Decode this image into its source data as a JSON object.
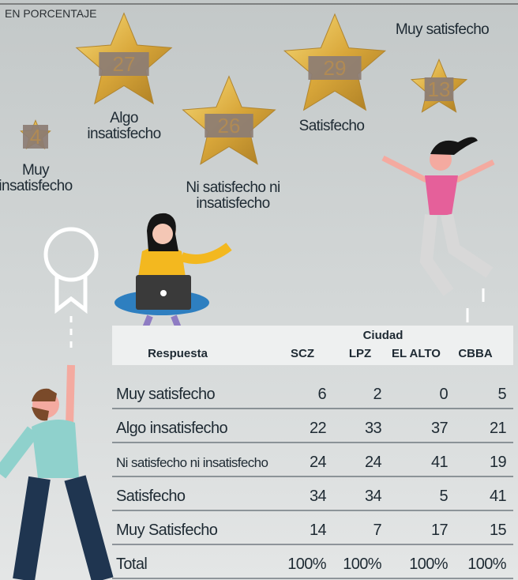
{
  "header": {
    "subtitle": "EN PORCENTAJE"
  },
  "stars": [
    {
      "label": "Muy insatisfecho",
      "value": 4
    },
    {
      "label": "Algo insatisfecho",
      "value": 27
    },
    {
      "label": "Ni satisfecho ni insatisfecho",
      "value": 26
    },
    {
      "label": "Satisfecho",
      "value": 29
    },
    {
      "label": "Muy satisfecho",
      "value": 13
    }
  ],
  "table": {
    "group_header": "Ciudad",
    "columns": [
      "Respuesta",
      "SCZ",
      "LPZ",
      "EL ALTO",
      "CBBA"
    ],
    "rows": [
      [
        "Muy satisfecho",
        6,
        2,
        0,
        5
      ],
      [
        "Algo insatisfecho",
        22,
        33,
        37,
        21
      ],
      [
        "Ni satisfecho ni insatisfecho",
        24,
        24,
        41,
        19
      ],
      [
        "Satisfecho",
        34,
        34,
        5,
        41
      ],
      [
        "Muy Satisfecho",
        14,
        7,
        17,
        15
      ],
      [
        "Total",
        "100%",
        "100%",
        "100%",
        "100%"
      ]
    ]
  }
}
